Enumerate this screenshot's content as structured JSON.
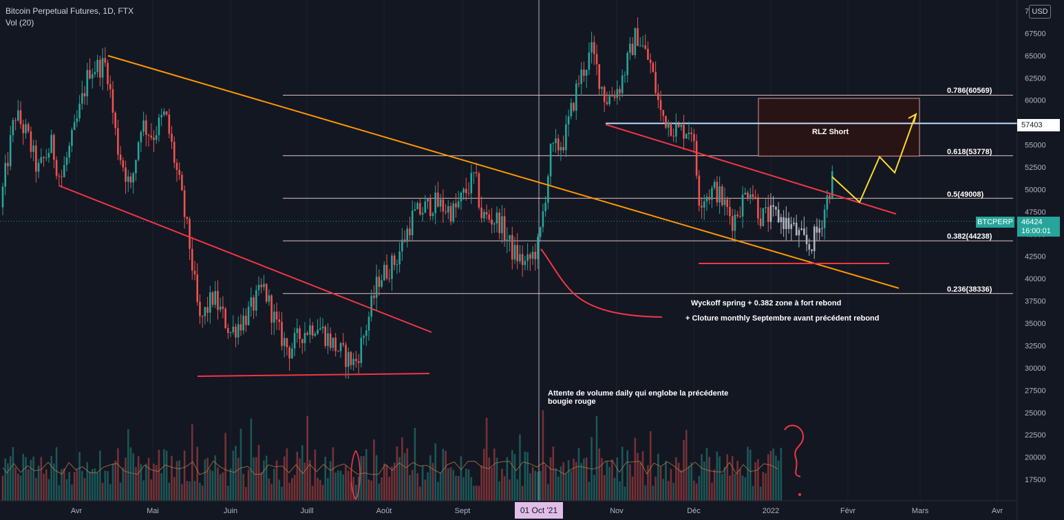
{
  "header": {
    "title": "Bitcoin Perpetual Futures, 1D, FTX",
    "indicator": "Vol (20)"
  },
  "currency_badge": "USD",
  "chart_data": {
    "type": "candlestick",
    "x": [
      "Avr",
      "Mai",
      "Juin",
      "Juill",
      "Août",
      "Sept",
      "Oct",
      "Nov",
      "Déc",
      "2022",
      "Févr",
      "Mars",
      "Avr"
    ],
    "close_approx": [
      52000,
      57000,
      36000,
      33000,
      40000,
      47000,
      43800,
      61000,
      50000,
      46200,
      46424
    ],
    "y_ticks": [
      "70000",
      "67500",
      "65000",
      "62500",
      "60000",
      "57500",
      "55000",
      "52500",
      "50000",
      "47500",
      "45000",
      "42500",
      "40000",
      "37500",
      "35000",
      "32500",
      "30000",
      "27500",
      "25000",
      "22500",
      "20000",
      "17500"
    ],
    "ylim": [
      15500,
      71000
    ],
    "fib_levels": [
      {
        "label": "0.786(60569)",
        "value": 60569
      },
      {
        "label": "0.618(53778)",
        "value": 53778
      },
      {
        "label": "0.5(49008)",
        "value": 49008
      },
      {
        "label": "0.382(44238)",
        "value": 44238
      },
      {
        "label": "0.236(38336)",
        "value": 38336
      }
    ],
    "horizontal_level": {
      "label": "57403",
      "value": 57403
    },
    "last_price": {
      "symbol": "BTCPERP",
      "price": "46424",
      "countdown": "16:00:01",
      "value": 46424
    },
    "crosshair_date": "01 Oct '21",
    "zone_label": "RLZ Short",
    "annotations": [
      "Wyckoff spring + 0.382 zone à fort rebond",
      "+ Cloture monthly Septembre avant précédent rebond",
      "Attente de volume daily qui englobe la précédente",
      "bougie rouge"
    ]
  },
  "colors": {
    "up": "#26a69a",
    "down": "#ef5350",
    "orange_line": "#ff9800",
    "red_line": "#f23645",
    "yellow_path": "#ffd92f",
    "fib_line": "#f7d9d9",
    "level_line": "#bbdefb",
    "zone_fill": "#2a1414",
    "zone_border": "#e0a0a0"
  }
}
